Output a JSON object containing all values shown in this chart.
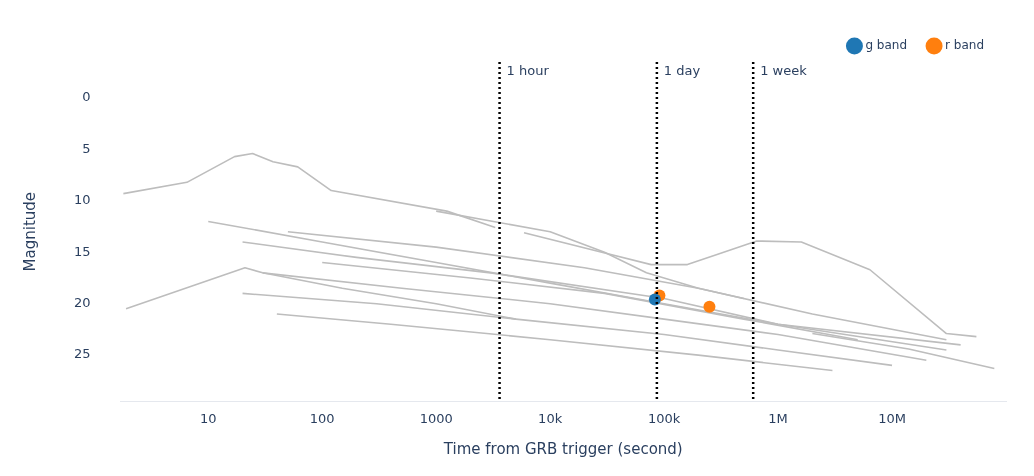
{
  "chart_data": {
    "type": "line",
    "xlabel": "Time from GRB trigger (second)",
    "ylabel": "Magnitude",
    "log": "x",
    "grid": false,
    "legend": "top right",
    "line_style": "solid",
    "xlim": [
      1.7,
      100000000
    ],
    "xticks": [
      10,
      100,
      1000,
      {
        "value": 10000,
        "label": "10k"
      },
      {
        "value": 100000,
        "label": "100k"
      },
      {
        "value": 1000000,
        "label": "1M"
      },
      {
        "value": 10000000,
        "label": "10M"
      }
    ],
    "ylim": [
      29.5,
      -3.5
    ],
    "yticks": [
      0,
      5,
      10,
      15,
      20,
      25
    ],
    "ref_lines": [
      {
        "axis": "x",
        "value": 3600,
        "label": "1 hour",
        "color": "#000000",
        "line_style": "dotted"
      },
      {
        "axis": "x",
        "value": 86400,
        "label": "1 day",
        "color": "#000000",
        "line_style": "dotted"
      },
      {
        "axis": "x",
        "value": 604800,
        "label": "1 week",
        "color": "#000000",
        "line_style": "dotted"
      }
    ],
    "series": [
      {
        "type": "line",
        "color": "#bdbdbd",
        "x": [
          1.8,
          6.5,
          17,
          24.5,
          37,
          61,
          120,
          1240,
          3300
        ],
        "values": [
          9.3,
          8.2,
          5.7,
          5.4,
          6.2,
          6.7,
          9,
          11,
          12.6
        ]
      },
      {
        "type": "line",
        "color": "#bdbdbd",
        "x": [
          1.9,
          21,
          30,
          150,
          1000,
          5000
        ],
        "values": [
          20.5,
          16.5,
          17,
          18.5,
          20,
          21.5
        ]
      },
      {
        "type": "line",
        "color": "#bdbdbd",
        "x": [
          5900,
          77000,
          160000,
          650000,
          1600000,
          6400000,
          30000000,
          55000000
        ],
        "values": [
          13.1,
          16.2,
          16.2,
          13.9,
          14,
          16.7,
          22.9,
          23.2
        ]
      },
      {
        "type": "line",
        "color": "#bdbdbd",
        "x": [
          20,
          200,
          3000,
          100000,
          1000000,
          30000000
        ],
        "values": [
          14,
          15.5,
          17,
          19.5,
          22,
          24.5
        ]
      },
      {
        "type": "line",
        "color": "#bdbdbd",
        "x": [
          30,
          500,
          10000,
          100000,
          1000000,
          20000000
        ],
        "values": [
          17,
          18.5,
          20,
          21.5,
          23,
          25.5
        ]
      },
      {
        "type": "line",
        "color": "#bdbdbd",
        "x": [
          20,
          300,
          5000,
          100000,
          1000000,
          10000000
        ],
        "values": [
          19,
          20,
          21.5,
          23,
          24.5,
          26
        ]
      },
      {
        "type": "line",
        "color": "#bdbdbd",
        "x": [
          50,
          1000,
          20000,
          200000,
          2000000,
          30000000
        ],
        "values": [
          13,
          14.5,
          16.5,
          18.5,
          21,
          23.5
        ]
      },
      {
        "type": "line",
        "color": "#bdbdbd",
        "x": [
          100,
          2000,
          30000,
          500000,
          5000000
        ],
        "values": [
          16,
          17.5,
          19,
          21.5,
          23.5
        ]
      },
      {
        "type": "line",
        "color": "#bdbdbd",
        "x": [
          40,
          400,
          10000,
          200000,
          3000000
        ],
        "values": [
          21,
          22,
          23.5,
          25,
          26.5
        ]
      },
      {
        "type": "line",
        "color": "#bdbdbd",
        "x": [
          1000,
          10000,
          30000,
          70000,
          200000,
          500000
        ],
        "values": [
          11,
          13,
          15,
          17,
          18.5,
          19.5
        ]
      },
      {
        "type": "line",
        "color": "#bdbdbd",
        "x": [
          10,
          100,
          1000,
          10000,
          100000,
          1000000,
          40000000
        ],
        "values": [
          12,
          14,
          16,
          18,
          20,
          22,
          24
        ]
      },
      {
        "type": "line",
        "color": "#bdbdbd",
        "x": [
          2000000,
          14000000,
          79000000
        ],
        "values": [
          22.9,
          24.4,
          26.3
        ]
      },
      {
        "type": "scatter",
        "name": "g band",
        "color": "#1f77b4",
        "x": [
          83000
        ],
        "values": [
          19.6
        ]
      },
      {
        "type": "scatter",
        "name": "r band",
        "color": "#ff7f0e",
        "x": [
          91000,
          250000
        ],
        "values": [
          19.2,
          20.3
        ]
      }
    ]
  }
}
